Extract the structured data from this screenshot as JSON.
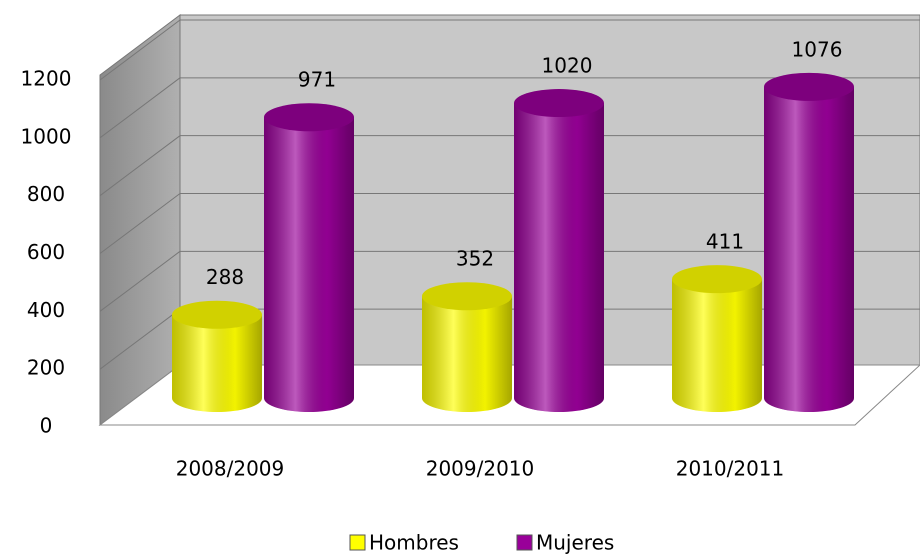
{
  "chart_data": {
    "type": "bar3d",
    "categories": [
      "2008/2009",
      "2009/2010",
      "2010/2011"
    ],
    "series": [
      {
        "name": "Hombres",
        "color": "#ffff00",
        "values": [
          288,
          352,
          411
        ]
      },
      {
        "name": "Mujeres",
        "color": "#990099",
        "values": [
          971,
          1020,
          1076
        ]
      }
    ],
    "ylim": [
      0,
      1200
    ],
    "yticks": [
      0,
      200,
      400,
      600,
      800,
      1000,
      1200
    ],
    "grid": true,
    "legend": "bottom"
  }
}
